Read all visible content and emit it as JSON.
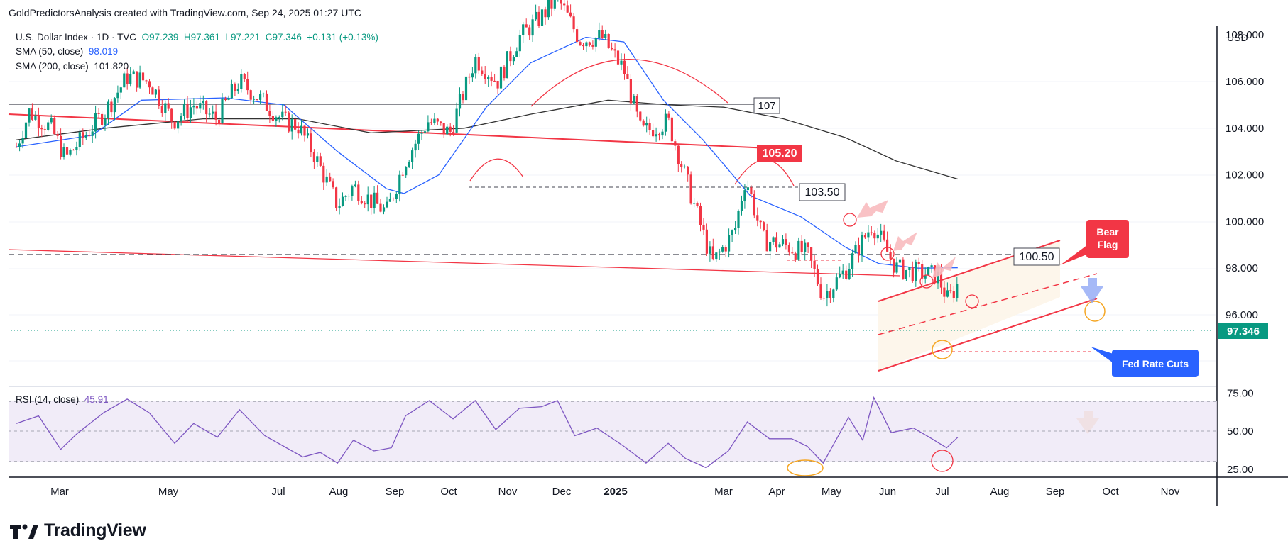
{
  "header": {
    "credit": "GoldPredictorsAnalysis created with TradingView.com, Sep 24, 2025 01:27 UTC"
  },
  "legend": {
    "symbol": "U.S. Dollar Index · 1D · TVC",
    "open": "O97.239",
    "high": "H97.361",
    "low": "L97.221",
    "close": "C97.346",
    "change": "+0.131 (+0.13%)",
    "sma50_label": "SMA (50, close)",
    "sma50_value": "98.019",
    "sma200_label": "SMA (200, close)",
    "sma200_value": "101.820",
    "rsi_label": "RSI (14, close)",
    "rsi_value": "45.91"
  },
  "currency": "USD",
  "colors": {
    "up": "#089981",
    "down": "#f23645",
    "sma50": "#2962ff",
    "sma200": "#333333",
    "rsi": "#7e57c2",
    "trend": "#f23645",
    "callout": "#f23645",
    "fed_callout": "#2962ff"
  },
  "annotations": {
    "level_107": "107",
    "level_105": "105.20",
    "level_103": "103.50",
    "level_100": "100.50",
    "bear_flag_1": "Bear",
    "bear_flag_2": "Flag",
    "fed_rate_cuts": "Fed Rate Cuts",
    "last_price": "97.346"
  },
  "footer": {
    "brand": "TradingView"
  },
  "chart_data": {
    "type": "candlestick",
    "title": "U.S. Dollar Index · 1D · TVC",
    "x_labels": [
      "Mar",
      "May",
      "Jul",
      "Aug",
      "Sep",
      "Oct",
      "Nov",
      "Dec",
      "2025",
      "Mar",
      "Apr",
      "May",
      "Jun",
      "Jul",
      "Aug",
      "Sep",
      "Oct",
      "Nov"
    ],
    "y_ticks": [
      "108.000",
      "106.000",
      "104.000",
      "102.000",
      "100.000",
      "98.000",
      "96.000"
    ],
    "ylim": [
      94.8,
      109.2
    ],
    "close_path": [
      {
        "x": "2024-02-06",
        "y": 103.2
      },
      {
        "x": "2024-02-14",
        "y": 104.7
      },
      {
        "x": "2024-02-28",
        "y": 104.0
      },
      {
        "x": "2024-03-08",
        "y": 102.7
      },
      {
        "x": "2024-03-18",
        "y": 103.5
      },
      {
        "x": "2024-04-02",
        "y": 104.7
      },
      {
        "x": "2024-04-16",
        "y": 106.2
      },
      {
        "x": "2024-04-30",
        "y": 106.0
      },
      {
        "x": "2024-05-15",
        "y": 104.3
      },
      {
        "x": "2024-05-28",
        "y": 105.0
      },
      {
        "x": "2024-06-11",
        "y": 104.4
      },
      {
        "x": "2024-06-26",
        "y": 106.0
      },
      {
        "x": "2024-07-10",
        "y": 105.2
      },
      {
        "x": "2024-07-24",
        "y": 104.3
      },
      {
        "x": "2024-08-02",
        "y": 104.1
      },
      {
        "x": "2024-08-12",
        "y": 102.9
      },
      {
        "x": "2024-08-27",
        "y": 100.7
      },
      {
        "x": "2024-09-06",
        "y": 101.5
      },
      {
        "x": "2024-09-17",
        "y": 100.9
      },
      {
        "x": "2024-09-27",
        "y": 100.4
      },
      {
        "x": "2024-10-08",
        "y": 102.5
      },
      {
        "x": "2024-10-23",
        "y": 104.3
      },
      {
        "x": "2024-11-06",
        "y": 103.8
      },
      {
        "x": "2024-11-22",
        "y": 107.0
      },
      {
        "x": "2024-12-06",
        "y": 106.0
      },
      {
        "x": "2024-12-20",
        "y": 107.9
      },
      {
        "x": "2025-01-03",
        "y": 108.8
      },
      {
        "x": "2025-01-13",
        "y": 109.6
      },
      {
        "x": "2025-01-27",
        "y": 107.8
      },
      {
        "x": "2025-02-10",
        "y": 107.9
      },
      {
        "x": "2025-02-24",
        "y": 106.5
      },
      {
        "x": "2025-03-07",
        "y": 103.8
      },
      {
        "x": "2025-03-24",
        "y": 104.3
      },
      {
        "x": "2025-04-03",
        "y": 102.1
      },
      {
        "x": "2025-04-21",
        "y": 98.2
      },
      {
        "x": "2025-05-05",
        "y": 99.6
      },
      {
        "x": "2025-05-12",
        "y": 101.9
      },
      {
        "x": "2025-05-23",
        "y": 99.2
      },
      {
        "x": "2025-06-05",
        "y": 99.0
      },
      {
        "x": "2025-06-20",
        "y": 98.6
      },
      {
        "x": "2025-06-30",
        "y": 96.8
      },
      {
        "x": "2025-07-14",
        "y": 97.9
      },
      {
        "x": "2025-07-31",
        "y": 99.9
      },
      {
        "x": "2025-08-15",
        "y": 98.0
      },
      {
        "x": "2025-08-29",
        "y": 97.8
      },
      {
        "x": "2025-09-10",
        "y": 97.7
      },
      {
        "x": "2025-09-17",
        "y": 96.6
      },
      {
        "x": "2025-09-23",
        "y": 97.346
      }
    ],
    "sma50": [
      {
        "x": "2024-02-06",
        "y": 103.2
      },
      {
        "x": "2024-03-25",
        "y": 103.7
      },
      {
        "x": "2024-04-25",
        "y": 105.2
      },
      {
        "x": "2024-06-17",
        "y": 105.3
      },
      {
        "x": "2024-07-24",
        "y": 105.0
      },
      {
        "x": "2024-08-27",
        "y": 103.0
      },
      {
        "x": "2024-09-27",
        "y": 101.4
      },
      {
        "x": "2024-10-08",
        "y": 101.2
      },
      {
        "x": "2024-10-30",
        "y": 102.0
      },
      {
        "x": "2024-11-29",
        "y": 104.9
      },
      {
        "x": "2024-12-27",
        "y": 106.8
      },
      {
        "x": "2025-01-31",
        "y": 107.9
      },
      {
        "x": "2025-02-24",
        "y": 107.7
      },
      {
        "x": "2025-03-21",
        "y": 105.2
      },
      {
        "x": "2025-04-15",
        "y": 103.5
      },
      {
        "x": "2025-05-15",
        "y": 101.1
      },
      {
        "x": "2025-06-16",
        "y": 100.2
      },
      {
        "x": "2025-07-14",
        "y": 98.9
      },
      {
        "x": "2025-08-04",
        "y": 98.2
      },
      {
        "x": "2025-08-29",
        "y": 98.0
      },
      {
        "x": "2025-09-23",
        "y": 98.019
      }
    ],
    "sma200": [
      {
        "x": "2024-02-06",
        "y": 103.5
      },
      {
        "x": "2024-04-02",
        "y": 104.0
      },
      {
        "x": "2024-06-03",
        "y": 104.4
      },
      {
        "x": "2024-08-02",
        "y": 104.4
      },
      {
        "x": "2024-09-17",
        "y": 103.8
      },
      {
        "x": "2024-11-15",
        "y": 104.0
      },
      {
        "x": "2024-12-27",
        "y": 104.6
      },
      {
        "x": "2025-02-14",
        "y": 105.2
      },
      {
        "x": "2025-03-24",
        "y": 105.0
      },
      {
        "x": "2025-04-28",
        "y": 104.9
      },
      {
        "x": "2025-06-05",
        "y": 104.4
      },
      {
        "x": "2025-07-14",
        "y": 103.6
      },
      {
        "x": "2025-08-15",
        "y": 102.6
      },
      {
        "x": "2025-09-23",
        "y": 101.82
      }
    ],
    "horizontal_levels": [
      107,
      105.2,
      103.5,
      100.5,
      96.4
    ],
    "rsi": {
      "ticks": [
        "75.00",
        "50.00",
        "25.00"
      ],
      "bands": [
        30,
        50,
        70
      ],
      "ylim": [
        20,
        80
      ],
      "last": 45.91,
      "values": [
        {
          "x": "2024-02-06",
          "y": 55
        },
        {
          "x": "2024-02-20",
          "y": 60
        },
        {
          "x": "2024-03-05",
          "y": 38
        },
        {
          "x": "2024-03-15",
          "y": 48
        },
        {
          "x": "2024-04-01",
          "y": 62
        },
        {
          "x": "2024-04-16",
          "y": 71
        },
        {
          "x": "2024-04-30",
          "y": 62
        },
        {
          "x": "2024-05-16",
          "y": 42
        },
        {
          "x": "2024-05-28",
          "y": 55
        },
        {
          "x": "2024-06-12",
          "y": 46
        },
        {
          "x": "2024-06-26",
          "y": 64
        },
        {
          "x": "2024-07-12",
          "y": 47
        },
        {
          "x": "2024-07-24",
          "y": 40
        },
        {
          "x": "2024-08-05",
          "y": 33
        },
        {
          "x": "2024-08-16",
          "y": 36
        },
        {
          "x": "2024-08-27",
          "y": 29
        },
        {
          "x": "2024-09-06",
          "y": 44
        },
        {
          "x": "2024-09-19",
          "y": 37
        },
        {
          "x": "2024-09-30",
          "y": 39
        },
        {
          "x": "2024-10-09",
          "y": 60
        },
        {
          "x": "2024-10-24",
          "y": 70
        },
        {
          "x": "2024-11-08",
          "y": 58
        },
        {
          "x": "2024-11-22",
          "y": 70
        },
        {
          "x": "2024-12-05",
          "y": 51
        },
        {
          "x": "2024-12-20",
          "y": 65
        },
        {
          "x": "2025-01-03",
          "y": 66
        },
        {
          "x": "2025-01-13",
          "y": 70
        },
        {
          "x": "2025-01-24",
          "y": 47
        },
        {
          "x": "2025-02-07",
          "y": 52
        },
        {
          "x": "2025-02-24",
          "y": 40
        },
        {
          "x": "2025-03-10",
          "y": 29
        },
        {
          "x": "2025-03-24",
          "y": 42
        },
        {
          "x": "2025-04-04",
          "y": 32
        },
        {
          "x": "2025-04-17",
          "y": 26
        },
        {
          "x": "2025-05-01",
          "y": 37
        },
        {
          "x": "2025-05-13",
          "y": 56
        },
        {
          "x": "2025-05-27",
          "y": 45
        },
        {
          "x": "2025-06-10",
          "y": 45
        },
        {
          "x": "2025-06-20",
          "y": 40
        },
        {
          "x": "2025-06-30",
          "y": 29
        },
        {
          "x": "2025-07-16",
          "y": 59
        },
        {
          "x": "2025-07-25",
          "y": 44
        },
        {
          "x": "2025-08-01",
          "y": 72
        },
        {
          "x": "2025-08-12",
          "y": 49
        },
        {
          "x": "2025-08-26",
          "y": 52
        },
        {
          "x": "2025-09-05",
          "y": 46
        },
        {
          "x": "2025-09-16",
          "y": 39
        },
        {
          "x": "2025-09-23",
          "y": 45.91
        }
      ]
    }
  }
}
